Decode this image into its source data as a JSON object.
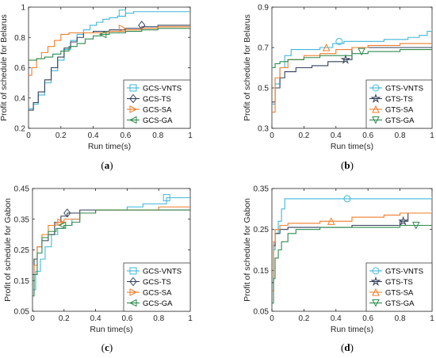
{
  "colors": {
    "VNTS": "#3fb7d9",
    "TS": "#33415a",
    "SA": "#ef7d2a",
    "GA": "#2d8a4e"
  },
  "chart_data": [
    {
      "type": "line",
      "caption": "(a)",
      "xlabel": "Run time(s)",
      "ylabel": "Profit of schedule for Belarus",
      "xlim": [
        0,
        1
      ],
      "ylim": [
        0.2,
        1
      ],
      "xticks": [
        "0",
        "0.2",
        "0.4",
        "0.6",
        "0.8",
        "1"
      ],
      "yticks": [
        "0.2",
        "0.4",
        "0.6",
        "0.8",
        "1"
      ],
      "legend_position": "bottom-right",
      "series": [
        {
          "name": "GCS-VNTS",
          "color": "#3fb7d9",
          "marker": "square",
          "marker_at": [
            0.58,
            0.96
          ],
          "x": [
            0,
            0.03,
            0.06,
            0.1,
            0.14,
            0.18,
            0.22,
            0.26,
            0.3,
            0.34,
            0.38,
            0.42,
            0.46,
            0.5,
            0.55,
            0.6,
            0.65,
            0.7,
            1.0
          ],
          "y": [
            0.33,
            0.36,
            0.42,
            0.5,
            0.58,
            0.65,
            0.72,
            0.78,
            0.82,
            0.85,
            0.88,
            0.9,
            0.92,
            0.93,
            0.94,
            0.96,
            0.97,
            0.97,
            0.97
          ]
        },
        {
          "name": "GCS-TS",
          "color": "#33415a",
          "marker": "diamond",
          "marker_at": [
            0.7,
            0.88
          ],
          "x": [
            0,
            0.03,
            0.06,
            0.1,
            0.14,
            0.18,
            0.22,
            0.26,
            0.3,
            0.34,
            0.4,
            0.5,
            0.6,
            0.7,
            0.8,
            1.0
          ],
          "y": [
            0.32,
            0.37,
            0.44,
            0.52,
            0.6,
            0.67,
            0.73,
            0.77,
            0.8,
            0.83,
            0.84,
            0.85,
            0.86,
            0.87,
            0.88,
            0.88
          ]
        },
        {
          "name": "GCS-SA",
          "color": "#ef7d2a",
          "marker": "triangle-right",
          "marker_at": [
            0.58,
            0.86
          ],
          "x": [
            0,
            0.02,
            0.05,
            0.08,
            0.12,
            0.16,
            0.2,
            0.25,
            0.3,
            0.4,
            0.5,
            0.6,
            0.7,
            0.8,
            1.0
          ],
          "y": [
            0.55,
            0.6,
            0.66,
            0.7,
            0.74,
            0.78,
            0.82,
            0.83,
            0.83,
            0.83,
            0.84,
            0.85,
            0.86,
            0.87,
            0.88
          ]
        },
        {
          "name": "GCS-GA",
          "color": "#2d8a4e",
          "marker": "triangle-left",
          "marker_at": [
            0.46,
            0.82
          ],
          "x": [
            0,
            0.05,
            0.1,
            0.15,
            0.2,
            0.25,
            0.3,
            0.35,
            0.4,
            0.45,
            0.5,
            0.6,
            0.7,
            0.8,
            1.0
          ],
          "y": [
            0.65,
            0.66,
            0.67,
            0.69,
            0.71,
            0.74,
            0.76,
            0.79,
            0.81,
            0.82,
            0.83,
            0.84,
            0.85,
            0.86,
            0.86
          ]
        }
      ]
    },
    {
      "type": "line",
      "caption": "(b)",
      "xlabel": "Run time(s)",
      "ylabel": "Profit of schedule for Belarus",
      "xlim": [
        0,
        1
      ],
      "ylim": [
        0.3,
        0.9
      ],
      "xticks": [
        "0",
        "0.2",
        "0.4",
        "0.6",
        "0.8",
        "1"
      ],
      "yticks": [
        "0.3",
        "0.5",
        "0.7",
        "0.9"
      ],
      "legend_position": "bottom-right",
      "series": [
        {
          "name": "GTS-VNTS",
          "color": "#3fb7d9",
          "marker": "circle",
          "marker_at": [
            0.42,
            0.73
          ],
          "x": [
            0,
            0.02,
            0.05,
            0.08,
            0.12,
            0.3,
            0.38,
            0.45,
            0.7,
            0.85,
            0.92,
            0.97,
            1.0
          ],
          "y": [
            0.42,
            0.52,
            0.6,
            0.66,
            0.69,
            0.7,
            0.72,
            0.73,
            0.74,
            0.75,
            0.76,
            0.78,
            0.79
          ]
        },
        {
          "name": "GTS-TS",
          "color": "#33415a",
          "marker": "star",
          "marker_at": [
            0.46,
            0.64
          ],
          "x": [
            0,
            0.02,
            0.05,
            0.08,
            0.15,
            0.25,
            0.35,
            0.45,
            0.5,
            0.6,
            0.8,
            1.0
          ],
          "y": [
            0.43,
            0.5,
            0.55,
            0.58,
            0.6,
            0.61,
            0.63,
            0.64,
            0.7,
            0.7,
            0.7,
            0.7
          ]
        },
        {
          "name": "GTS-SA",
          "color": "#ef7d2a",
          "marker": "triangle-up",
          "marker_at": [
            0.34,
            0.7
          ],
          "x": [
            0,
            0.02,
            0.05,
            0.1,
            0.2,
            0.3,
            0.4,
            0.5,
            0.6,
            0.8,
            1.0
          ],
          "y": [
            0.38,
            0.55,
            0.6,
            0.64,
            0.66,
            0.67,
            0.69,
            0.7,
            0.71,
            0.72,
            0.72
          ]
        },
        {
          "name": "GTS-GA",
          "color": "#2d8a4e",
          "marker": "triangle-down",
          "marker_at": [
            0.56,
            0.68
          ],
          "x": [
            0,
            0.02,
            0.05,
            0.1,
            0.2,
            0.3,
            0.5,
            0.6,
            0.8,
            1.0
          ],
          "y": [
            0.6,
            0.62,
            0.63,
            0.64,
            0.65,
            0.66,
            0.67,
            0.68,
            0.69,
            0.69
          ]
        }
      ]
    },
    {
      "type": "line",
      "caption": "(c)",
      "xlabel": "Run time(s)",
      "ylabel": "Profit of schedule for Gabon",
      "xlim": [
        0,
        1
      ],
      "ylim": [
        0.05,
        0.45
      ],
      "xticks": [
        "0",
        "0.2",
        "0.4",
        "0.6",
        "0.8",
        "1"
      ],
      "yticks": [
        "0.05",
        "0.15",
        "0.25",
        "0.35",
        "0.45"
      ],
      "legend_position": "bottom-right",
      "series": [
        {
          "name": "GCS-VNTS",
          "color": "#3fb7d9",
          "marker": "square",
          "marker_at": [
            0.85,
            0.42
          ],
          "x": [
            0,
            0.02,
            0.05,
            0.08,
            0.12,
            0.16,
            0.2,
            0.25,
            0.3,
            0.4,
            0.5,
            0.6,
            0.7,
            0.85,
            1.0
          ],
          "y": [
            0.12,
            0.18,
            0.22,
            0.26,
            0.3,
            0.32,
            0.33,
            0.35,
            0.37,
            0.38,
            0.38,
            0.39,
            0.4,
            0.42,
            0.42
          ]
        },
        {
          "name": "GCS-TS",
          "color": "#33415a",
          "marker": "diamond",
          "marker_at": [
            0.22,
            0.37
          ],
          "x": [
            0,
            0.01,
            0.03,
            0.06,
            0.1,
            0.14,
            0.18,
            0.22,
            0.3,
            0.4,
            0.6,
            0.8,
            1.0
          ],
          "y": [
            0.17,
            0.22,
            0.26,
            0.28,
            0.3,
            0.34,
            0.36,
            0.37,
            0.38,
            0.38,
            0.38,
            0.38,
            0.38
          ]
        },
        {
          "name": "GCS-SA",
          "color": "#ef7d2a",
          "marker": "triangle-right",
          "marker_at": [
            0.18,
            0.34
          ],
          "x": [
            0,
            0.01,
            0.03,
            0.06,
            0.1,
            0.15,
            0.2,
            0.3,
            0.4,
            0.6,
            0.8,
            1.0
          ],
          "y": [
            0.1,
            0.2,
            0.26,
            0.3,
            0.33,
            0.34,
            0.35,
            0.37,
            0.38,
            0.38,
            0.39,
            0.39
          ]
        },
        {
          "name": "GCS-GA",
          "color": "#2d8a4e",
          "marker": "triangle-left",
          "marker_at": [
            0.19,
            0.33
          ],
          "x": [
            0,
            0.01,
            0.03,
            0.06,
            0.1,
            0.15,
            0.2,
            0.25,
            0.3,
            0.4,
            0.6,
            1.0
          ],
          "y": [
            0.1,
            0.17,
            0.24,
            0.29,
            0.31,
            0.32,
            0.33,
            0.34,
            0.37,
            0.38,
            0.38,
            0.38
          ]
        }
      ]
    },
    {
      "type": "line",
      "caption": "(d)",
      "xlabel": "Run time(s)",
      "ylabel": "Profit of schedule for Gabon",
      "xlim": [
        0,
        1
      ],
      "ylim": [
        0.05,
        0.35
      ],
      "xticks": [
        "0",
        "0.2",
        "0.4",
        "0.6",
        "0.8",
        "1"
      ],
      "yticks": [
        "0.05",
        "0.15",
        "0.25",
        "0.35"
      ],
      "legend_position": "bottom-right",
      "series": [
        {
          "name": "GTS-VNTS",
          "color": "#3fb7d9",
          "marker": "circle",
          "marker_at": [
            0.47,
            0.325
          ],
          "x": [
            0,
            0.01,
            0.02,
            0.04,
            0.06,
            0.08,
            0.97,
            1.0
          ],
          "y": [
            0.1,
            0.2,
            0.24,
            0.27,
            0.3,
            0.325,
            0.325,
            0.33
          ]
        },
        {
          "name": "GTS-TS",
          "color": "#33415a",
          "marker": "star",
          "marker_at": [
            0.82,
            0.27
          ],
          "x": [
            0,
            0.01,
            0.02,
            0.05,
            0.1,
            0.3,
            0.5,
            0.8,
            0.85,
            1.0
          ],
          "y": [
            0.12,
            0.21,
            0.24,
            0.25,
            0.255,
            0.255,
            0.26,
            0.27,
            0.29,
            0.29
          ]
        },
        {
          "name": "GTS-SA",
          "color": "#ef7d2a",
          "marker": "triangle-up",
          "marker_at": [
            0.37,
            0.27
          ],
          "x": [
            0,
            0.01,
            0.02,
            0.05,
            0.1,
            0.3,
            0.5,
            0.7,
            0.8,
            1.0
          ],
          "y": [
            0.1,
            0.22,
            0.25,
            0.26,
            0.265,
            0.27,
            0.28,
            0.285,
            0.29,
            0.295
          ]
        },
        {
          "name": "GTS-GA",
          "color": "#2d8a4e",
          "marker": "triangle-down",
          "marker_at": [
            0.9,
            0.26
          ],
          "x": [
            0,
            0.01,
            0.02,
            0.04,
            0.06,
            0.1,
            0.15,
            0.3,
            0.6,
            0.8,
            1.0
          ],
          "y": [
            0.07,
            0.13,
            0.18,
            0.2,
            0.22,
            0.24,
            0.25,
            0.255,
            0.255,
            0.26,
            0.26
          ]
        }
      ]
    }
  ]
}
